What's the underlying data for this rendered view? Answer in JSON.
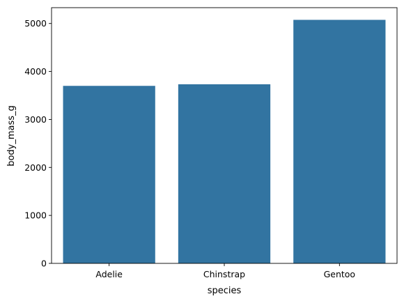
{
  "chart_data": {
    "type": "bar",
    "categories": [
      "Adelie",
      "Chinstrap",
      "Gentoo"
    ],
    "values": [
      3700,
      3733,
      5076
    ],
    "title": "",
    "xlabel": "species",
    "ylabel": "body_mass_g",
    "ylim": [
      0,
      5330
    ],
    "yticks": [
      0,
      1000,
      2000,
      3000,
      4000,
      5000
    ],
    "grid": false,
    "bar_color": "#3274a1"
  }
}
